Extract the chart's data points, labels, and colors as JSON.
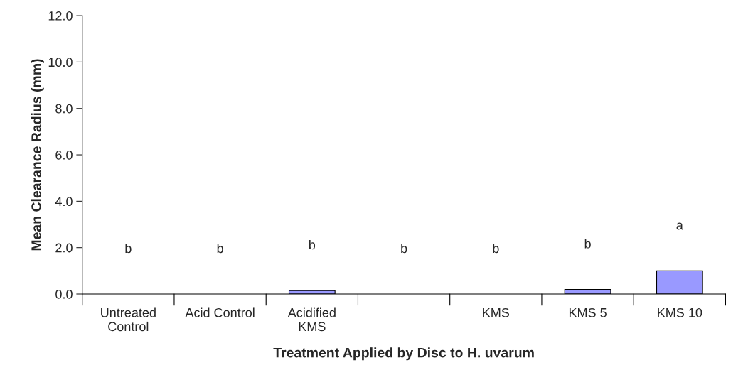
{
  "chart_data": {
    "type": "bar",
    "xlabel": "Treatment Applied by Disc to H. uvarum",
    "ylabel": "Mean Clearance Radius (mm)",
    "categories": [
      "Untreated\nControl",
      "Acid Control",
      "Acidified\nKMS",
      null,
      "KMS",
      "KMS 5",
      "KMS 10"
    ],
    "values": [
      0,
      0,
      0.15,
      0,
      0,
      0.2,
      1.0
    ],
    "color": "#9999ff",
    "ylim": [
      0,
      12
    ],
    "yticks": [
      {
        "value": 0,
        "label": "0.0"
      },
      {
        "value": 2,
        "label": "2.0"
      },
      {
        "value": 4,
        "label": "4.0"
      },
      {
        "value": 6,
        "label": "6.0"
      },
      {
        "value": 8,
        "label": "8.0"
      },
      {
        "value": 10,
        "label": "10.0"
      },
      {
        "value": 12,
        "label": "12.0"
      }
    ],
    "grid": false,
    "legend": false,
    "annotations": [
      "b",
      "b",
      "b",
      "b",
      "b",
      "b",
      "a"
    ]
  }
}
